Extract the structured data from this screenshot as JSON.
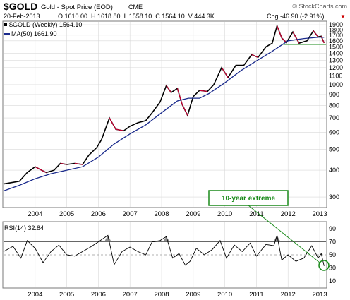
{
  "header": {
    "symbol": "$GOLD",
    "name": "Gold - Spot Price (EOD)",
    "exchange": "CME",
    "copyright": "© StockCharts.com",
    "date": "20-Feb-2013",
    "ohlc": "O 1610.00  H 1618.80  L 1558.10  C 1564.10  V 444.3K",
    "chg": "Chg -46.90 (-2.91%)",
    "chg_marker": "▼"
  },
  "price_panel": {
    "legend_main": "$GOLD (Weekly) 1564.10",
    "legend_ma": "MA(50) 1661.90",
    "annotation": "10-year extreme"
  },
  "rsi_panel": {
    "legend": "RSI(14) 32.84"
  },
  "colors": {
    "price": "#000000",
    "down_bars": "#cc0033",
    "ma": "#1a2a8c",
    "support_line": "#1a8a1a",
    "annotation": "#1a8a1a",
    "rsi_line": "#000000",
    "rsi_fill": "#8c8c8c",
    "grid": "#d9d9d9",
    "chg_negative": "#cc0000"
  },
  "chart_data": [
    {
      "type": "line",
      "title": "$GOLD Gold - Spot Price (EOD) CME",
      "scale": "log",
      "ylim": [
        270,
        1960
      ],
      "y_ticks": [
        300,
        400,
        500,
        600,
        700,
        800,
        900,
        1000,
        1100,
        1200,
        1300,
        1400,
        1500,
        1600,
        1700,
        1800,
        1900
      ],
      "x_ticks": [
        "2004",
        "2005",
        "2006",
        "2007",
        "2008",
        "2009",
        "2010",
        "2011",
        "2012",
        "2013"
      ],
      "grid": true,
      "legend_position": "top-left",
      "series": [
        {
          "name": "$GOLD (Weekly) 1564.10",
          "points": [
            [
              2003.0,
              345
            ],
            [
              2003.25,
              350
            ],
            [
              2003.5,
              355
            ],
            [
              2003.75,
              390
            ],
            [
              2004.0,
              415
            ],
            [
              2004.2,
              400
            ],
            [
              2004.35,
              390
            ],
            [
              2004.6,
              400
            ],
            [
              2004.8,
              430
            ],
            [
              2005.0,
              425
            ],
            [
              2005.25,
              430
            ],
            [
              2005.5,
              425
            ],
            [
              2005.7,
              470
            ],
            [
              2005.95,
              510
            ],
            [
              2006.1,
              555
            ],
            [
              2006.35,
              700
            ],
            [
              2006.55,
              620
            ],
            [
              2006.8,
              610
            ],
            [
              2007.0,
              640
            ],
            [
              2007.25,
              665
            ],
            [
              2007.5,
              680
            ],
            [
              2007.7,
              740
            ],
            [
              2007.95,
              830
            ],
            [
              2008.15,
              990
            ],
            [
              2008.3,
              920
            ],
            [
              2008.5,
              960
            ],
            [
              2008.65,
              810
            ],
            [
              2008.82,
              720
            ],
            [
              2009.0,
              880
            ],
            [
              2009.2,
              940
            ],
            [
              2009.45,
              930
            ],
            [
              2009.65,
              1000
            ],
            [
              2009.9,
              1200
            ],
            [
              2010.1,
              1080
            ],
            [
              2010.35,
              1230
            ],
            [
              2010.6,
              1230
            ],
            [
              2010.85,
              1380
            ],
            [
              2011.05,
              1340
            ],
            [
              2011.3,
              1500
            ],
            [
              2011.5,
              1560
            ],
            [
              2011.65,
              1880
            ],
            [
              2011.8,
              1650
            ],
            [
              2011.95,
              1570
            ],
            [
              2012.15,
              1760
            ],
            [
              2012.35,
              1560
            ],
            [
              2012.6,
              1600
            ],
            [
              2012.8,
              1780
            ],
            [
              2012.95,
              1670
            ],
            [
              2013.05,
              1680
            ],
            [
              2013.14,
              1564
            ]
          ]
        },
        {
          "name": "MA(50) 1661.90",
          "points": [
            [
              2003.0,
              320
            ],
            [
              2003.5,
              340
            ],
            [
              2004.0,
              365
            ],
            [
              2004.5,
              385
            ],
            [
              2005.0,
              400
            ],
            [
              2005.5,
              415
            ],
            [
              2006.0,
              460
            ],
            [
              2006.5,
              530
            ],
            [
              2007.0,
              590
            ],
            [
              2007.5,
              650
            ],
            [
              2008.0,
              740
            ],
            [
              2008.5,
              840
            ],
            [
              2008.85,
              865
            ],
            [
              2009.2,
              865
            ],
            [
              2009.5,
              910
            ],
            [
              2010.0,
              1020
            ],
            [
              2010.5,
              1160
            ],
            [
              2011.0,
              1290
            ],
            [
              2011.5,
              1430
            ],
            [
              2012.0,
              1600
            ],
            [
              2012.5,
              1640
            ],
            [
              2013.0,
              1665
            ],
            [
              2013.14,
              1662
            ]
          ]
        }
      ],
      "support_level": 1540,
      "annotations": [
        "10-year extreme"
      ]
    },
    {
      "type": "line",
      "title": "RSI(14) 32.84",
      "ylim": [
        0,
        100
      ],
      "y_ticks": [
        10,
        30,
        50,
        70,
        90
      ],
      "x_ticks": [
        "2004",
        "2005",
        "2006",
        "2007",
        "2008",
        "2009",
        "2010",
        "2011",
        "2012",
        "2013"
      ],
      "reference_lines": [
        30,
        50,
        70
      ],
      "series": [
        {
          "name": "RSI(14) 32.84",
          "points": [
            [
              2003.0,
              55
            ],
            [
              2003.3,
              63
            ],
            [
              2003.55,
              45
            ],
            [
              2003.75,
              72
            ],
            [
              2004.0,
              60
            ],
            [
              2004.25,
              38
            ],
            [
              2004.5,
              55
            ],
            [
              2004.75,
              65
            ],
            [
              2005.0,
              50
            ],
            [
              2005.25,
              48
            ],
            [
              2005.5,
              55
            ],
            [
              2005.75,
              62
            ],
            [
              2006.0,
              70
            ],
            [
              2006.3,
              80
            ],
            [
              2006.5,
              35
            ],
            [
              2006.75,
              55
            ],
            [
              2007.0,
              62
            ],
            [
              2007.25,
              55
            ],
            [
              2007.5,
              50
            ],
            [
              2007.7,
              70
            ],
            [
              2007.95,
              72
            ],
            [
              2008.15,
              78
            ],
            [
              2008.35,
              45
            ],
            [
              2008.55,
              52
            ],
            [
              2008.75,
              34
            ],
            [
              2008.9,
              40
            ],
            [
              2009.1,
              60
            ],
            [
              2009.35,
              50
            ],
            [
              2009.6,
              58
            ],
            [
              2009.85,
              72
            ],
            [
              2010.05,
              45
            ],
            [
              2010.3,
              65
            ],
            [
              2010.55,
              55
            ],
            [
              2010.8,
              68
            ],
            [
              2011.0,
              48
            ],
            [
              2011.3,
              66
            ],
            [
              2011.55,
              64
            ],
            [
              2011.65,
              80
            ],
            [
              2011.8,
              42
            ],
            [
              2012.0,
              50
            ],
            [
              2012.25,
              40
            ],
            [
              2012.5,
              45
            ],
            [
              2012.75,
              64
            ],
            [
              2012.95,
              45
            ],
            [
              2013.05,
              52
            ],
            [
              2013.14,
              32.84
            ]
          ]
        }
      ]
    }
  ]
}
